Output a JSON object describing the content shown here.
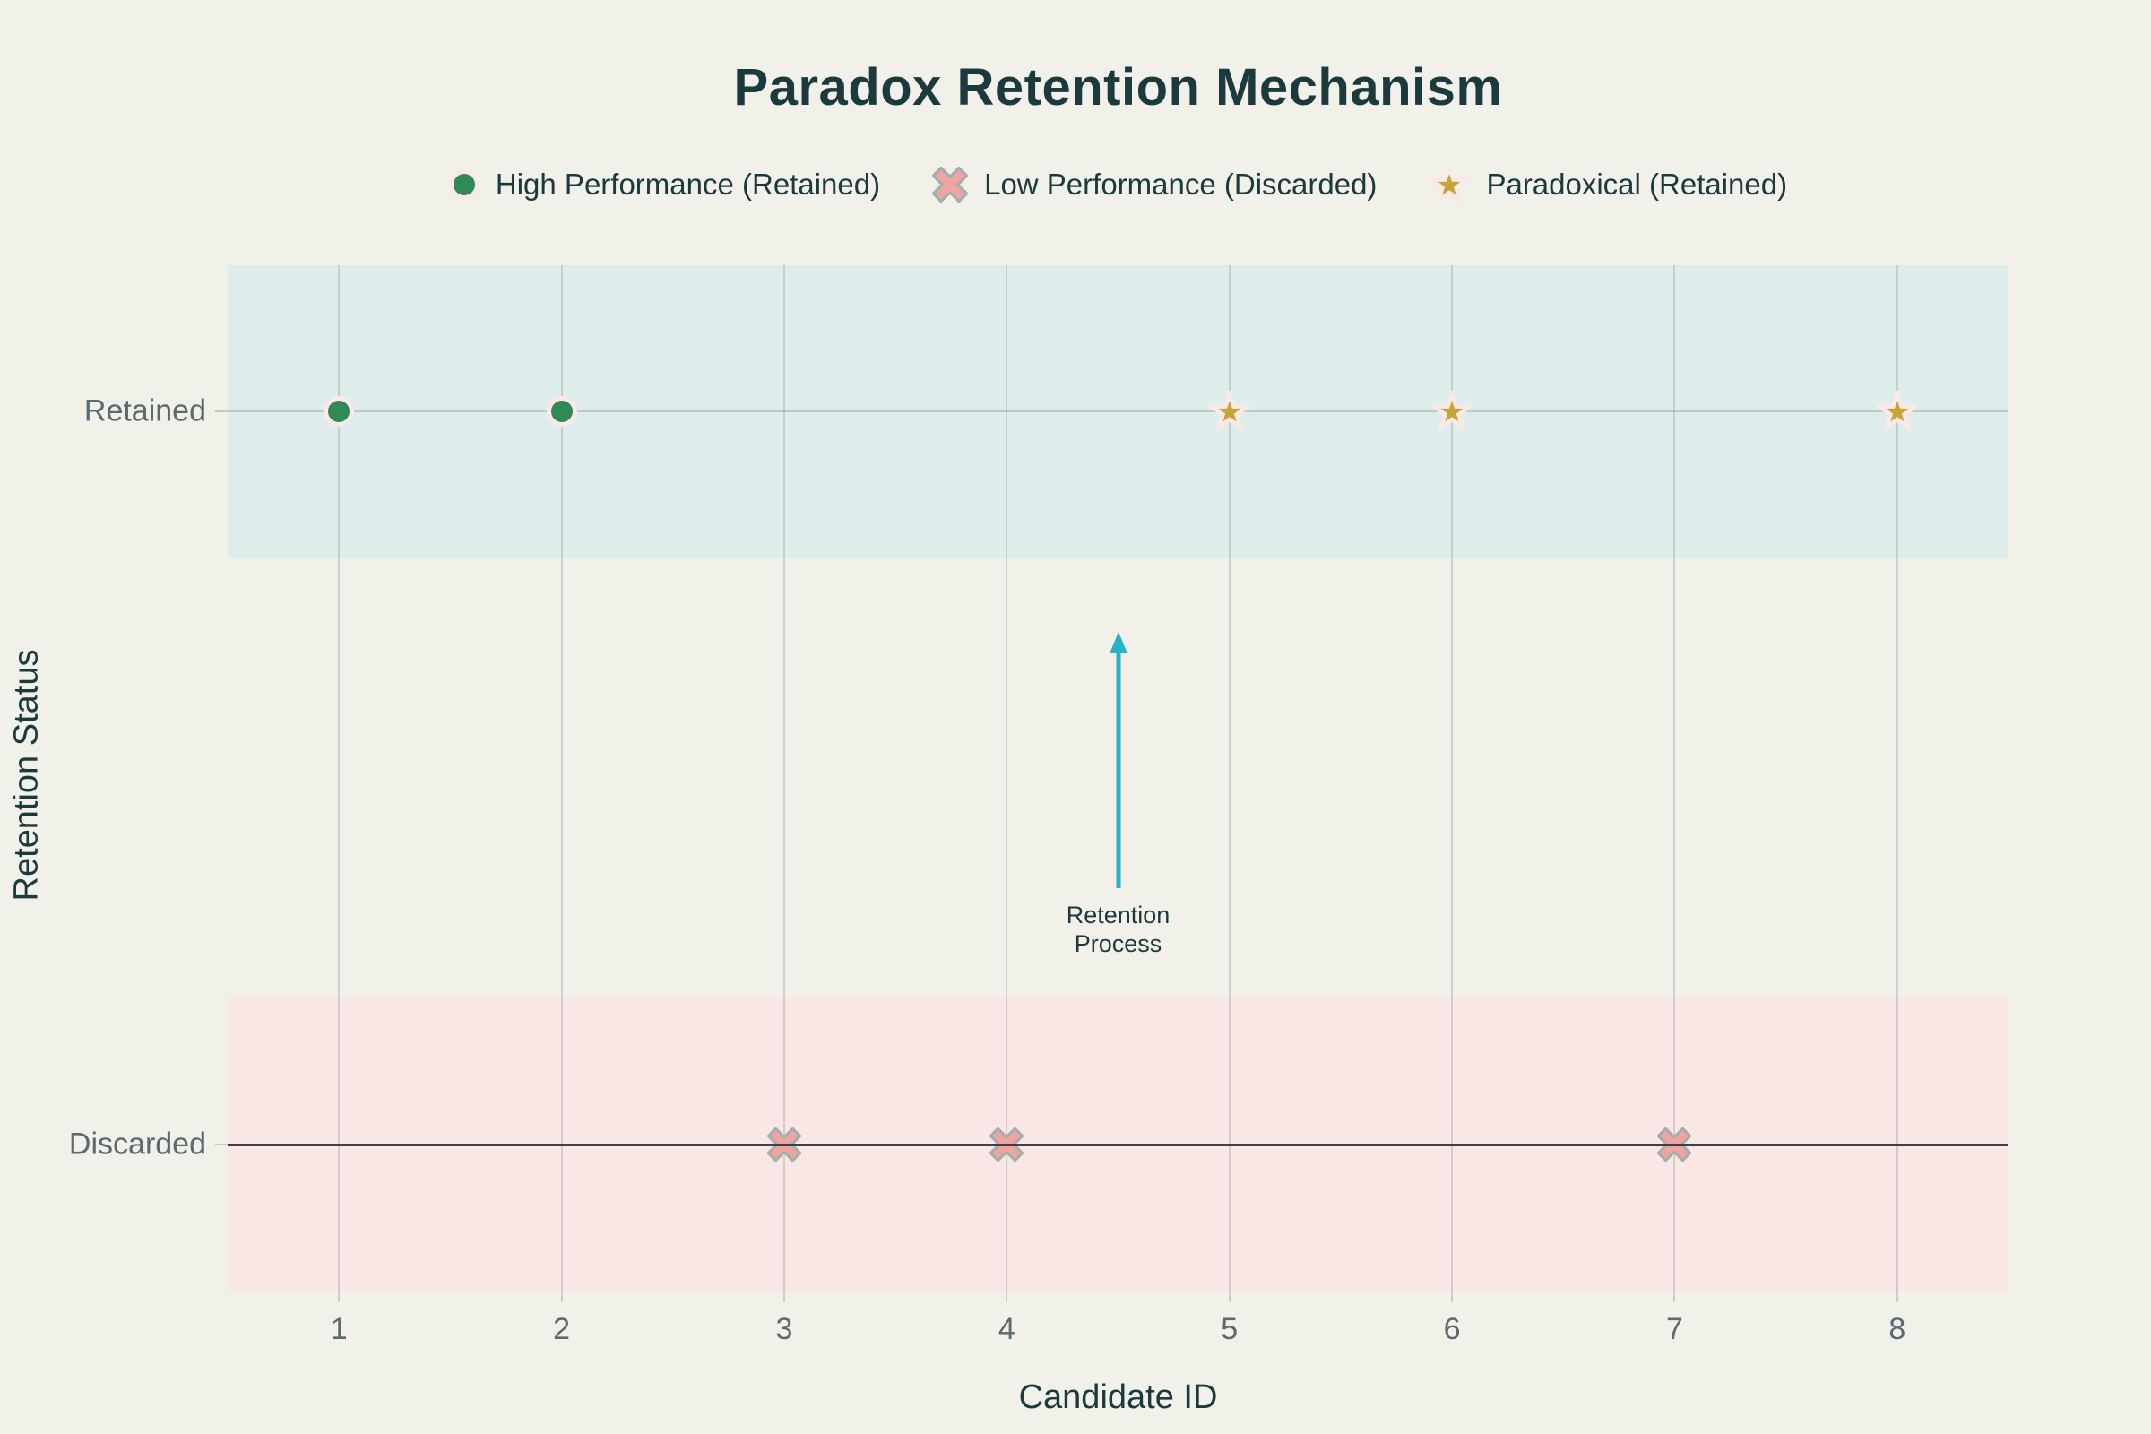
{
  "title": "Paradox Retention Mechanism",
  "legend": {
    "items": [
      {
        "label": "High Performance (Retained)",
        "marker": "circle"
      },
      {
        "label": "Low Performance (Discarded)",
        "marker": "x"
      },
      {
        "label": "Paradoxical (Retained)",
        "marker": "star"
      }
    ]
  },
  "chart_data": {
    "type": "scatter",
    "title": "Paradox Retention Mechanism",
    "xlabel": "Candidate ID",
    "ylabel": "Retention Status",
    "x_ticks": [
      1,
      2,
      3,
      4,
      5,
      6,
      7,
      8
    ],
    "x_range": [
      0.5,
      8.5
    ],
    "y_range": [
      -0.2,
      1.2
    ],
    "y_categories": [
      {
        "label": "Retained",
        "value": 1
      },
      {
        "label": "Discarded",
        "value": 0
      }
    ],
    "bands": [
      {
        "name": "retained-band",
        "from": 0.8,
        "to": 1.2,
        "color": "#dfecec"
      },
      {
        "name": "discarded-band",
        "from": -0.2,
        "to": 0.2,
        "color": "#f9e7e5"
      }
    ],
    "gridline_y": 1,
    "zeroline_y": 0,
    "grid": true,
    "legend_position": "top-center",
    "series": [
      {
        "name": "High Performance (Retained)",
        "marker": "circle",
        "x": [
          1,
          2
        ],
        "y": [
          1,
          1
        ]
      },
      {
        "name": "Low Performance (Discarded)",
        "marker": "x",
        "x": [
          3,
          4,
          7
        ],
        "y": [
          0,
          0,
          0
        ]
      },
      {
        "name": "Paradoxical (Retained)",
        "marker": "star",
        "x": [
          5,
          6,
          8
        ],
        "y": [
          1,
          1,
          1
        ]
      }
    ],
    "annotation": {
      "text_lines": [
        "Retention",
        "Process"
      ],
      "x": 4.5,
      "arrow_from_y": 0.35,
      "arrow_to_y": 0.7
    }
  },
  "colors": {
    "background": "#f1f1ea",
    "retained_band": "#dfecec",
    "discarded_band": "#f9e7e5",
    "high_performance": "#2f8a57",
    "low_performance_fill": "#f0a4a0",
    "low_performance_edge": "#a4aeae",
    "paradoxical": "#c6a436",
    "marker_halo": "#fbe9e8",
    "arrow": "#29b1c5",
    "dark_text": "#1c393e",
    "gray_text": "#5a6a6e",
    "zeroline": "#3c4142"
  }
}
